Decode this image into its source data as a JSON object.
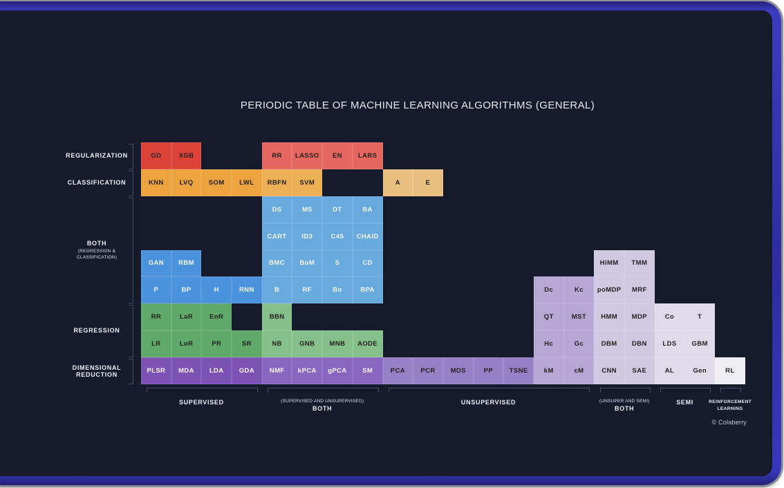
{
  "title": "PERIODIC TABLE OF MACHINE LEARNING ALGORITHMS (GENERAL)",
  "copyright": "© Colaberry",
  "palette": {
    "red_dark": "#dd4239",
    "red_light": "#e5655f",
    "orange": "#eda43e",
    "orange_light": "#eeb054",
    "tan": "#e9bf80",
    "blue": "#68a9de",
    "blue_dark": "#4b92dc",
    "green": "#5fa96a",
    "green_light": "#85c08a",
    "purple1": "#7c52b5",
    "purple2": "#8966bf",
    "purple3": "#9781c6",
    "purple4": "#b6a7d4",
    "purple5": "#cfc9e1",
    "purple6": "#dfdbea",
    "white_cell": "#f0eef5",
    "text_light": "#f5f7fb",
    "text_dark": "#23201e"
  },
  "grid": {
    "light_text_backgrounds": [
      "blue",
      "blue_dark",
      "purple1",
      "purple2"
    ],
    "cells": [
      {
        "t": "GD",
        "c": 1,
        "r": 1,
        "bg": "red_dark"
      },
      {
        "t": "XGB",
        "c": 2,
        "r": 1,
        "bg": "red_dark"
      },
      {
        "t": "RR",
        "c": 5,
        "r": 1,
        "bg": "red_light"
      },
      {
        "t": "LASSO",
        "c": 6,
        "r": 1,
        "bg": "red_light"
      },
      {
        "t": "EN",
        "c": 7,
        "r": 1,
        "bg": "red_light"
      },
      {
        "t": "LARS",
        "c": 8,
        "r": 1,
        "bg": "red_light"
      },
      {
        "t": "KNN",
        "c": 1,
        "r": 2,
        "bg": "orange"
      },
      {
        "t": "LVQ",
        "c": 2,
        "r": 2,
        "bg": "orange"
      },
      {
        "t": "SOM",
        "c": 3,
        "r": 2,
        "bg": "orange"
      },
      {
        "t": "LWL",
        "c": 4,
        "r": 2,
        "bg": "orange"
      },
      {
        "t": "RBFN",
        "c": 5,
        "r": 2,
        "bg": "orange_light"
      },
      {
        "t": "SVM",
        "c": 6,
        "r": 2,
        "bg": "orange_light"
      },
      {
        "t": "A",
        "c": 9,
        "r": 2,
        "bg": "tan"
      },
      {
        "t": "E",
        "c": 10,
        "r": 2,
        "bg": "tan"
      },
      {
        "t": "DS",
        "c": 5,
        "r": 3,
        "bg": "blue"
      },
      {
        "t": "M5",
        "c": 6,
        "r": 3,
        "bg": "blue"
      },
      {
        "t": "DT",
        "c": 7,
        "r": 3,
        "bg": "blue"
      },
      {
        "t": "BA",
        "c": 8,
        "r": 3,
        "bg": "blue"
      },
      {
        "t": "CART",
        "c": 5,
        "r": 4,
        "bg": "blue"
      },
      {
        "t": "ID3",
        "c": 6,
        "r": 4,
        "bg": "blue"
      },
      {
        "t": "C45",
        "c": 7,
        "r": 4,
        "bg": "blue"
      },
      {
        "t": "CHAID",
        "c": 8,
        "r": 4,
        "bg": "blue"
      },
      {
        "t": "GAN",
        "c": 1,
        "r": 5,
        "bg": "blue_dark"
      },
      {
        "t": "RBM",
        "c": 2,
        "r": 5,
        "bg": "blue_dark"
      },
      {
        "t": "BMC",
        "c": 5,
        "r": 5,
        "bg": "blue"
      },
      {
        "t": "BoM",
        "c": 6,
        "r": 5,
        "bg": "blue"
      },
      {
        "t": "S",
        "c": 7,
        "r": 5,
        "bg": "blue"
      },
      {
        "t": "CD",
        "c": 8,
        "r": 5,
        "bg": "blue"
      },
      {
        "t": "HiMM",
        "c": 16,
        "r": 5,
        "bg": "purple5"
      },
      {
        "t": "TMM",
        "c": 17,
        "r": 5,
        "bg": "purple5"
      },
      {
        "t": "P",
        "c": 1,
        "r": 6,
        "bg": "blue_dark"
      },
      {
        "t": "BP",
        "c": 2,
        "r": 6,
        "bg": "blue_dark"
      },
      {
        "t": "H",
        "c": 3,
        "r": 6,
        "bg": "blue_dark"
      },
      {
        "t": "RNN",
        "c": 4,
        "r": 6,
        "bg": "blue_dark"
      },
      {
        "t": "B",
        "c": 5,
        "r": 6,
        "bg": "blue"
      },
      {
        "t": "RF",
        "c": 6,
        "r": 6,
        "bg": "blue"
      },
      {
        "t": "Bo",
        "c": 7,
        "r": 6,
        "bg": "blue"
      },
      {
        "t": "BPA",
        "c": 8,
        "r": 6,
        "bg": "blue"
      },
      {
        "t": "Dc",
        "c": 14,
        "r": 6,
        "bg": "purple4"
      },
      {
        "t": "Kc",
        "c": 15,
        "r": 6,
        "bg": "purple4"
      },
      {
        "t": "poMDP",
        "c": 16,
        "r": 6,
        "bg": "purple5"
      },
      {
        "t": "MRF",
        "c": 17,
        "r": 6,
        "bg": "purple5"
      },
      {
        "t": "RR",
        "c": 1,
        "r": 7,
        "bg": "green"
      },
      {
        "t": "LaR",
        "c": 2,
        "r": 7,
        "bg": "green"
      },
      {
        "t": "EnR",
        "c": 3,
        "r": 7,
        "bg": "green"
      },
      {
        "t": "BBN",
        "c": 5,
        "r": 7,
        "bg": "green_light"
      },
      {
        "t": "QT",
        "c": 14,
        "r": 7,
        "bg": "purple4"
      },
      {
        "t": "MST",
        "c": 15,
        "r": 7,
        "bg": "purple4"
      },
      {
        "t": "HMM",
        "c": 16,
        "r": 7,
        "bg": "purple5"
      },
      {
        "t": "MDP",
        "c": 17,
        "r": 7,
        "bg": "purple5"
      },
      {
        "t": "Co",
        "c": 18,
        "r": 7,
        "bg": "purple6"
      },
      {
        "t": "T",
        "c": 19,
        "r": 7,
        "bg": "purple6"
      },
      {
        "t": "LR",
        "c": 1,
        "r": 8,
        "bg": "green"
      },
      {
        "t": "LoR",
        "c": 2,
        "r": 8,
        "bg": "green"
      },
      {
        "t": "PR",
        "c": 3,
        "r": 8,
        "bg": "green"
      },
      {
        "t": "SR",
        "c": 4,
        "r": 8,
        "bg": "green"
      },
      {
        "t": "NB",
        "c": 5,
        "r": 8,
        "bg": "green_light"
      },
      {
        "t": "GNB",
        "c": 6,
        "r": 8,
        "bg": "green_light"
      },
      {
        "t": "MNB",
        "c": 7,
        "r": 8,
        "bg": "green_light"
      },
      {
        "t": "AODE",
        "c": 8,
        "r": 8,
        "bg": "green_light"
      },
      {
        "t": "Hc",
        "c": 14,
        "r": 8,
        "bg": "purple4"
      },
      {
        "t": "Gc",
        "c": 15,
        "r": 8,
        "bg": "purple4"
      },
      {
        "t": "DBM",
        "c": 16,
        "r": 8,
        "bg": "purple5"
      },
      {
        "t": "DBN",
        "c": 17,
        "r": 8,
        "bg": "purple5"
      },
      {
        "t": "LDS",
        "c": 18,
        "r": 8,
        "bg": "purple6"
      },
      {
        "t": "GBM",
        "c": 19,
        "r": 8,
        "bg": "purple6"
      },
      {
        "t": "PLSR",
        "c": 1,
        "r": 9,
        "bg": "purple1"
      },
      {
        "t": "MDA",
        "c": 2,
        "r": 9,
        "bg": "purple1"
      },
      {
        "t": "LDA",
        "c": 3,
        "r": 9,
        "bg": "purple1"
      },
      {
        "t": "GDA",
        "c": 4,
        "r": 9,
        "bg": "purple1"
      },
      {
        "t": "NMF",
        "c": 5,
        "r": 9,
        "bg": "purple2"
      },
      {
        "t": "kPCA",
        "c": 6,
        "r": 9,
        "bg": "purple2"
      },
      {
        "t": "gPCA",
        "c": 7,
        "r": 9,
        "bg": "purple2"
      },
      {
        "t": "SM",
        "c": 8,
        "r": 9,
        "bg": "purple2"
      },
      {
        "t": "PCA",
        "c": 9,
        "r": 9,
        "bg": "purple3"
      },
      {
        "t": "PCR",
        "c": 10,
        "r": 9,
        "bg": "purple3"
      },
      {
        "t": "MDS",
        "c": 11,
        "r": 9,
        "bg": "purple3"
      },
      {
        "t": "PP",
        "c": 12,
        "r": 9,
        "bg": "purple3"
      },
      {
        "t": "TSNE",
        "c": 13,
        "r": 9,
        "bg": "purple3"
      },
      {
        "t": "kM",
        "c": 14,
        "r": 9,
        "bg": "purple4"
      },
      {
        "t": "cM",
        "c": 15,
        "r": 9,
        "bg": "purple4"
      },
      {
        "t": "CNN",
        "c": 16,
        "r": 9,
        "bg": "purple5"
      },
      {
        "t": "SAE",
        "c": 17,
        "r": 9,
        "bg": "purple5"
      },
      {
        "t": "AL",
        "c": 18,
        "r": 9,
        "bg": "purple6"
      },
      {
        "t": "Gen",
        "c": 19,
        "r": 9,
        "bg": "purple6"
      },
      {
        "t": "RL",
        "c": 20,
        "r": 9,
        "bg": "white_cell"
      }
    ]
  },
  "row_groups": [
    {
      "label": "REGULARIZATION",
      "sub": "",
      "rows": [
        1,
        1
      ]
    },
    {
      "label": "CLASSIFICATION",
      "sub": "",
      "rows": [
        2,
        2
      ]
    },
    {
      "label": "BOTH",
      "sub": "(REGRESSION & CLASSIFICATION)",
      "rows": [
        3,
        6
      ]
    },
    {
      "label": "REGRESSION",
      "sub": "",
      "rows": [
        7,
        8
      ]
    },
    {
      "label": "DIMENSIONAL REDUCTION",
      "sub": "",
      "rows": [
        9,
        9
      ]
    }
  ],
  "col_groups": [
    {
      "label": "SUPERVISED",
      "sub": "",
      "cols": [
        1,
        4
      ],
      "small": false
    },
    {
      "label": "BOTH",
      "sub": "(SUPERVISED AND UNSUPERVISED)",
      "cols": [
        5,
        8
      ],
      "small": false
    },
    {
      "label": "UNSUPERVISED",
      "sub": "",
      "cols": [
        9,
        15
      ],
      "small": false
    },
    {
      "label": "BOTH",
      "sub": "(UNSUPER AND SEMI)",
      "cols": [
        16,
        17
      ],
      "small": false
    },
    {
      "label": "SEMI",
      "sub": "",
      "cols": [
        18,
        19
      ],
      "small": false
    },
    {
      "label": "REINFORCEMENT LEARNING",
      "sub": "",
      "cols": [
        20,
        20
      ],
      "small": true
    }
  ]
}
